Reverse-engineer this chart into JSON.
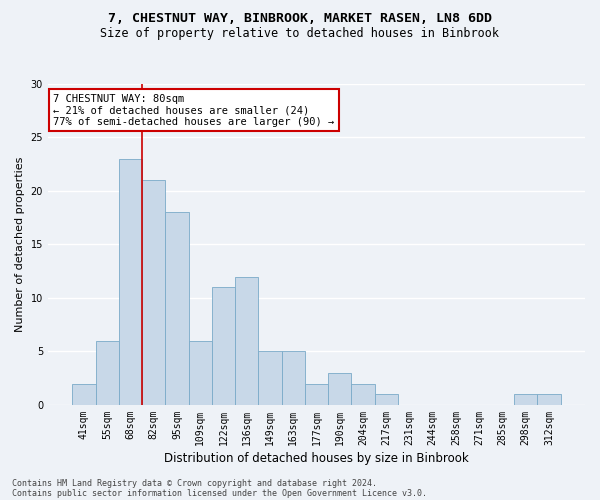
{
  "title1": "7, CHESTNUT WAY, BINBROOK, MARKET RASEN, LN8 6DD",
  "title2": "Size of property relative to detached houses in Binbrook",
  "xlabel": "Distribution of detached houses by size in Binbrook",
  "ylabel": "Number of detached properties",
  "categories": [
    "41sqm",
    "55sqm",
    "68sqm",
    "82sqm",
    "95sqm",
    "109sqm",
    "122sqm",
    "136sqm",
    "149sqm",
    "163sqm",
    "177sqm",
    "190sqm",
    "204sqm",
    "217sqm",
    "231sqm",
    "244sqm",
    "258sqm",
    "271sqm",
    "285sqm",
    "298sqm",
    "312sqm"
  ],
  "values": [
    2,
    6,
    23,
    21,
    18,
    6,
    11,
    12,
    5,
    5,
    2,
    3,
    2,
    1,
    0,
    0,
    0,
    0,
    0,
    1,
    1
  ],
  "bar_color": "#c8d8e8",
  "bar_edge_color": "#7aaac8",
  "vline_x_index": 2,
  "vline_color": "#cc0000",
  "annotation_text": "7 CHESTNUT WAY: 80sqm\n← 21% of detached houses are smaller (24)\n77% of semi-detached houses are larger (90) →",
  "annotation_box_facecolor": "#ffffff",
  "annotation_box_edgecolor": "#cc0000",
  "footer1": "Contains HM Land Registry data © Crown copyright and database right 2024.",
  "footer2": "Contains public sector information licensed under the Open Government Licence v3.0.",
  "ylim": [
    0,
    30
  ],
  "yticks": [
    0,
    5,
    10,
    15,
    20,
    25,
    30
  ],
  "background_color": "#eef2f7",
  "plot_bg_color": "#eef2f7",
  "grid_color": "#ffffff",
  "title1_fontsize": 9.5,
  "title2_fontsize": 8.5,
  "tick_fontsize": 7,
  "ylabel_fontsize": 8,
  "xlabel_fontsize": 8.5,
  "annotation_fontsize": 7.5,
  "footer_fontsize": 6
}
